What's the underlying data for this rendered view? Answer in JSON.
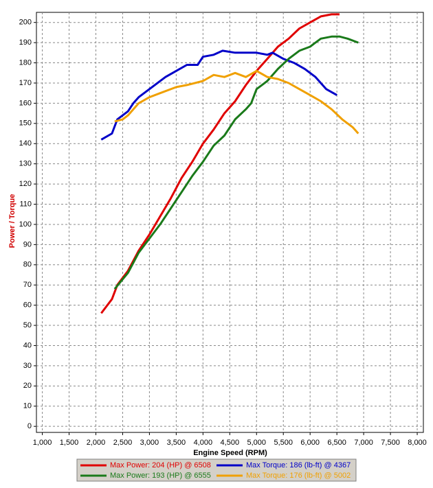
{
  "chart_data": {
    "type": "line",
    "x_label": "Engine Speed (RPM)",
    "y_label": "Power / Torque",
    "xlim": [
      890,
      8115
    ],
    "ylim": [
      -3,
      205
    ],
    "xticks": [
      {
        "value": 1000,
        "label": "1,000"
      },
      {
        "value": 1500,
        "label": "1,500"
      },
      {
        "value": 2000,
        "label": "2,000"
      },
      {
        "value": 2500,
        "label": "2,500"
      },
      {
        "value": 3000,
        "label": "3,000"
      },
      {
        "value": 3500,
        "label": "3,500"
      },
      {
        "value": 4000,
        "label": "4,000"
      },
      {
        "value": 4500,
        "label": "4,500"
      },
      {
        "value": 5000,
        "label": "5,000"
      },
      {
        "value": 5500,
        "label": "5,500"
      },
      {
        "value": 6000,
        "label": "6,000"
      },
      {
        "value": 6500,
        "label": "6,500"
      },
      {
        "value": 7000,
        "label": "7,000"
      },
      {
        "value": 7500,
        "label": "7,500"
      },
      {
        "value": 8000,
        "label": "8,000"
      }
    ],
    "yticks": [
      0,
      10,
      20,
      30,
      40,
      50,
      60,
      70,
      80,
      90,
      100,
      110,
      120,
      130,
      140,
      150,
      160,
      170,
      180,
      190,
      200
    ],
    "grid": true,
    "series": [
      {
        "name": "Max Power: 204 (HP) @ 6508",
        "color": "#e00000",
        "x": [
          2100,
          2300,
          2400,
          2600,
          2800,
          3000,
          3200,
          3400,
          3600,
          3800,
          4000,
          4200,
          4400,
          4600,
          4800,
          5000,
          5200,
          5400,
          5600,
          5800,
          6000,
          6200,
          6400,
          6550
        ],
        "values": [
          56,
          63,
          70,
          77,
          87,
          95,
          104,
          113,
          123,
          131,
          140,
          147,
          155,
          161,
          169,
          176,
          182,
          188,
          192,
          197,
          200,
          203,
          204,
          204
        ]
      },
      {
        "name": "Max Torque: 186 (lb-ft) @ 4367",
        "color": "#0000c8",
        "x": [
          2100,
          2300,
          2400,
          2600,
          2700,
          2800,
          3000,
          3300,
          3500,
          3700,
          3900,
          4000,
          4200,
          4367,
          4600,
          5000,
          5200,
          5300,
          5500,
          5700,
          5900,
          6100,
          6300,
          6500
        ],
        "values": [
          142,
          145,
          152,
          156,
          160,
          163,
          167,
          173,
          176,
          179,
          179,
          183,
          184,
          186,
          185,
          185,
          184,
          185,
          182,
          180,
          177,
          173,
          167,
          164
        ]
      },
      {
        "name": "Max Power: 193 (HP) @ 6555",
        "color": "#1a7a1a",
        "x": [
          2350,
          2600,
          2800,
          3000,
          3200,
          3400,
          3600,
          3800,
          4000,
          4200,
          4400,
          4600,
          4800,
          4900,
          5000,
          5200,
          5400,
          5600,
          5800,
          6000,
          6100,
          6200,
          6400,
          6555,
          6700,
          6900
        ],
        "values": [
          68,
          76,
          86,
          93,
          100,
          108,
          116,
          124,
          131,
          139,
          144,
          152,
          157,
          160,
          167,
          171,
          177,
          182,
          186,
          188,
          190,
          192,
          193,
          193,
          192,
          190
        ]
      },
      {
        "name": "Max Torque: 176 (lb-ft) @ 5002",
        "color": "#f0a000",
        "x": [
          2350,
          2500,
          2600,
          2800,
          3000,
          3200,
          3500,
          3700,
          4000,
          4200,
          4400,
          4600,
          4800,
          5002,
          5200,
          5400,
          5600,
          5800,
          6000,
          6200,
          6400,
          6600,
          6800,
          6900
        ],
        "values": [
          151,
          152,
          154,
          160,
          163,
          165,
          168,
          169,
          171,
          174,
          173,
          175,
          173,
          176,
          173,
          172,
          170,
          167,
          164,
          161,
          157,
          152,
          148,
          145
        ]
      }
    ]
  }
}
